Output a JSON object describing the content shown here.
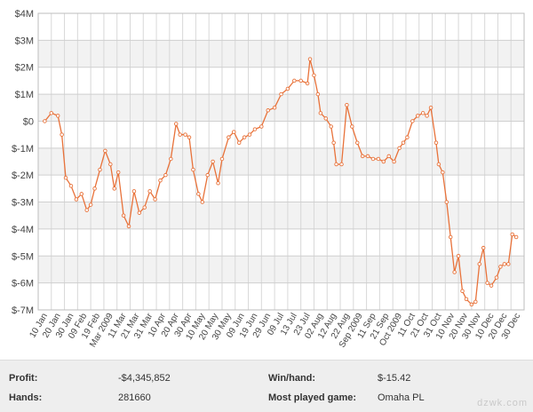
{
  "chart_data": {
    "type": "line",
    "title": "",
    "xlabel": "",
    "ylabel": "",
    "ylim": [
      -7000000,
      4000000
    ],
    "grid": true,
    "line_color": "#e8723a",
    "point_color": "#ffffff",
    "y_ticks": [
      {
        "value": 4000000,
        "label": "$4M"
      },
      {
        "value": 3000000,
        "label": "$3M"
      },
      {
        "value": 2000000,
        "label": "$2M"
      },
      {
        "value": 1000000,
        "label": "$1M"
      },
      {
        "value": 0,
        "label": "$0"
      },
      {
        "value": -1000000,
        "label": "$-1M"
      },
      {
        "value": -2000000,
        "label": "$-2M"
      },
      {
        "value": -3000000,
        "label": "$-3M"
      },
      {
        "value": -4000000,
        "label": "$-4M"
      },
      {
        "value": -5000000,
        "label": "$-5M"
      },
      {
        "value": -6000000,
        "label": "$-6M"
      },
      {
        "value": -7000000,
        "label": "$-7M"
      }
    ],
    "x_tick_labels": [
      "10 Jan",
      "20 Jan",
      "30 Jan",
      "09 Feb",
      "19 Feb",
      "Mar 2009",
      "11 Mar",
      "21 Mar",
      "31 Mar",
      "10 Apr",
      "20 Apr",
      "30 Apr",
      "10 May",
      "20 May",
      "30 May",
      "09 Jun",
      "19 Jun",
      "29 Jun",
      "09 Jul",
      "13 Jul",
      "23 Jul",
      "02 Aug",
      "12 Aug",
      "22 Aug",
      "Sep 2009",
      "11 Sep",
      "21 Sep",
      "Oct 2009",
      "11 Oct",
      "21 Oct",
      "31 Oct",
      "10 Nov",
      "20 Nov",
      "30 Nov",
      "10 Dec",
      "20 Dec",
      "30 Dec"
    ],
    "series": [
      {
        "values": [
          [
            0.0,
            0.0
          ],
          [
            0.5,
            0.3
          ],
          [
            1.0,
            0.2
          ],
          [
            1.3,
            -0.5
          ],
          [
            1.6,
            -2.1
          ],
          [
            2.0,
            -2.4
          ],
          [
            2.4,
            -2.9
          ],
          [
            2.8,
            -2.7
          ],
          [
            3.2,
            -3.3
          ],
          [
            3.5,
            -3.1
          ],
          [
            3.8,
            -2.5
          ],
          [
            4.2,
            -1.8
          ],
          [
            4.6,
            -1.1
          ],
          [
            5.0,
            -1.6
          ],
          [
            5.3,
            -2.5
          ],
          [
            5.6,
            -1.9
          ],
          [
            6.0,
            -3.5
          ],
          [
            6.4,
            -3.9
          ],
          [
            6.8,
            -2.6
          ],
          [
            7.2,
            -3.4
          ],
          [
            7.6,
            -3.2
          ],
          [
            8.0,
            -2.6
          ],
          [
            8.4,
            -2.9
          ],
          [
            8.8,
            -2.2
          ],
          [
            9.2,
            -2.0
          ],
          [
            9.6,
            -1.4
          ],
          [
            10.0,
            -0.1
          ],
          [
            10.3,
            -0.5
          ],
          [
            10.7,
            -0.5
          ],
          [
            11.0,
            -0.6
          ],
          [
            11.3,
            -1.8
          ],
          [
            11.7,
            -2.7
          ],
          [
            12.0,
            -3.0
          ],
          [
            12.4,
            -2.0
          ],
          [
            12.8,
            -1.5
          ],
          [
            13.2,
            -2.3
          ],
          [
            13.5,
            -1.4
          ],
          [
            14.0,
            -0.6
          ],
          [
            14.4,
            -0.4
          ],
          [
            14.8,
            -0.8
          ],
          [
            15.2,
            -0.6
          ],
          [
            15.6,
            -0.5
          ],
          [
            16.0,
            -0.3
          ],
          [
            16.5,
            -0.2
          ],
          [
            17.0,
            0.4
          ],
          [
            17.5,
            0.5
          ],
          [
            18.0,
            1.0
          ],
          [
            18.5,
            1.2
          ],
          [
            19.0,
            1.5
          ],
          [
            19.5,
            1.5
          ],
          [
            20.0,
            1.4
          ],
          [
            20.2,
            2.3
          ],
          [
            20.5,
            1.7
          ],
          [
            20.8,
            1.0
          ],
          [
            21.0,
            0.3
          ],
          [
            21.4,
            0.1
          ],
          [
            21.8,
            -0.2
          ],
          [
            22.0,
            -0.8
          ],
          [
            22.2,
            -1.6
          ],
          [
            22.6,
            -1.6
          ],
          [
            23.0,
            0.6
          ],
          [
            23.4,
            -0.2
          ],
          [
            23.8,
            -0.8
          ],
          [
            24.2,
            -1.3
          ],
          [
            24.6,
            -1.3
          ],
          [
            25.0,
            -1.4
          ],
          [
            25.4,
            -1.4
          ],
          [
            25.8,
            -1.5
          ],
          [
            26.2,
            -1.3
          ],
          [
            26.6,
            -1.5
          ],
          [
            27.0,
            -1.0
          ],
          [
            27.3,
            -0.8
          ],
          [
            27.6,
            -0.6
          ],
          [
            28.0,
            0.0
          ],
          [
            28.4,
            0.2
          ],
          [
            28.8,
            0.3
          ],
          [
            29.1,
            0.2
          ],
          [
            29.4,
            0.5
          ],
          [
            29.8,
            -0.8
          ],
          [
            30.0,
            -1.6
          ],
          [
            30.3,
            -1.9
          ],
          [
            30.6,
            -3.0
          ],
          [
            30.9,
            -4.3
          ],
          [
            31.2,
            -5.6
          ],
          [
            31.5,
            -5.0
          ],
          [
            31.8,
            -6.3
          ],
          [
            32.1,
            -6.6
          ],
          [
            32.5,
            -6.8
          ],
          [
            32.8,
            -6.7
          ],
          [
            33.1,
            -5.3
          ],
          [
            33.4,
            -4.7
          ],
          [
            33.7,
            -6.0
          ],
          [
            34.0,
            -6.1
          ],
          [
            34.4,
            -5.8
          ],
          [
            34.7,
            -5.4
          ],
          [
            35.0,
            -5.3
          ],
          [
            35.3,
            -5.3
          ],
          [
            35.6,
            -4.2
          ],
          [
            35.9,
            -4.3
          ]
        ]
      }
    ]
  },
  "stats": {
    "profit_label": "Profit:",
    "profit_value": "-$4,345,852",
    "hands_label": "Hands:",
    "hands_value": "281660",
    "winhand_label": "Win/hand:",
    "winhand_value": "$-15.42",
    "mostplayed_label": "Most played game:",
    "mostplayed_value": "Omaha PL"
  },
  "watermark": {
    "text": "dzwk.com"
  }
}
